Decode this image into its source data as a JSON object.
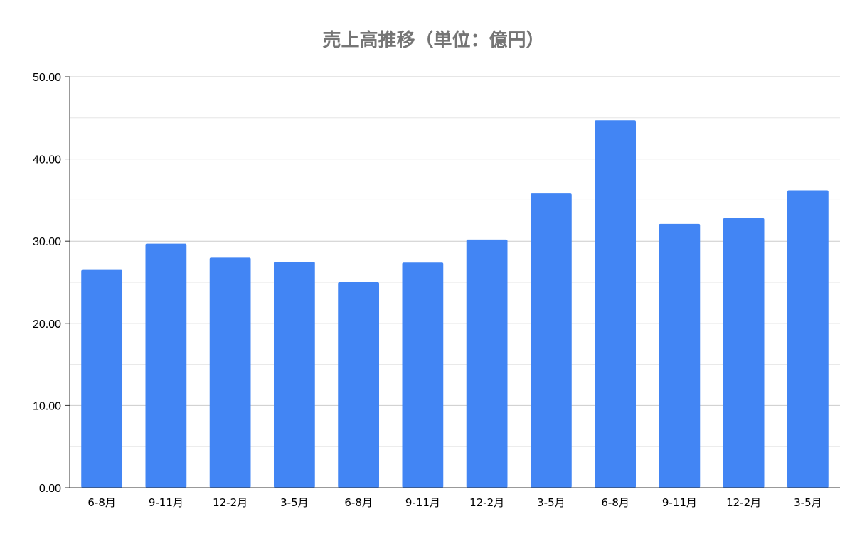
{
  "chart_data": {
    "type": "bar",
    "title": "売上高推移（単位：億円）",
    "xlabel": "",
    "ylabel": "",
    "categories": [
      "6-8月",
      "9-11月",
      "12-2月",
      "3-5月",
      "6-8月",
      "9-11月",
      "12-2月",
      "3-5月",
      "6-8月",
      "9-11月",
      "12-2月",
      "3-5月"
    ],
    "values": [
      26.5,
      29.7,
      28.0,
      27.5,
      25.0,
      27.4,
      30.2,
      35.8,
      44.7,
      32.1,
      32.8,
      36.2
    ],
    "ylim": [
      0,
      50
    ],
    "yticks": [
      "0.00",
      "10.00",
      "20.00",
      "30.00",
      "40.00",
      "50.00"
    ],
    "grid": true,
    "bar_color": "#4285f4",
    "gridline_color": "#cccccc",
    "minor_gridline_color": "#e6e6e6"
  }
}
